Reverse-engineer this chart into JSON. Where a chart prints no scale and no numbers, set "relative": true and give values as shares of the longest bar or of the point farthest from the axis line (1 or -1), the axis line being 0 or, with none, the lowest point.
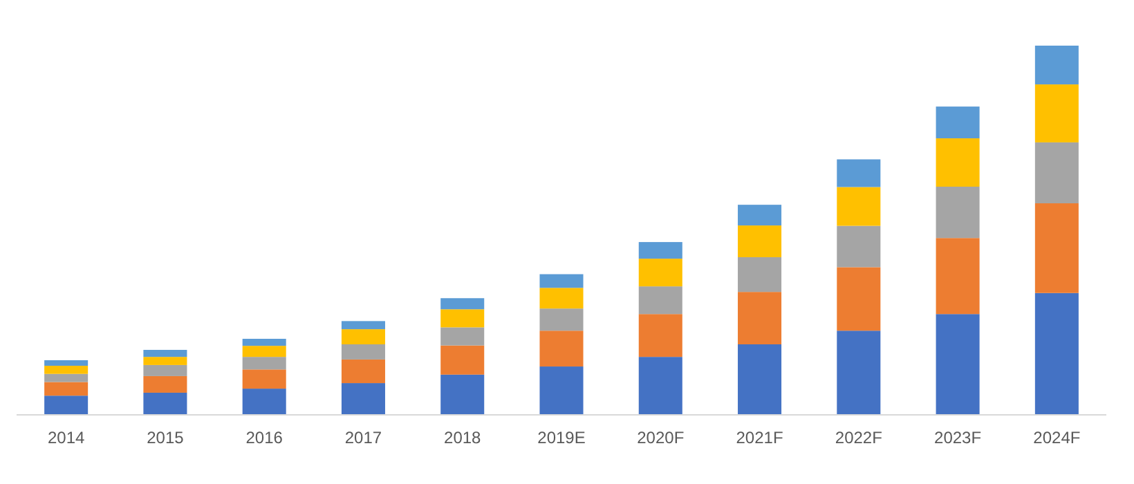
{
  "chart_data": {
    "type": "bar",
    "stacked": true,
    "relative": true,
    "categories": [
      "2014",
      "2015",
      "2016",
      "2017",
      "2018",
      "2019E",
      "2020F",
      "2021F",
      "2022F",
      "2023F",
      "2024F"
    ],
    "series": [
      {
        "color": "#4472c4",
        "values": [
          0.052,
          0.06,
          0.071,
          0.086,
          0.109,
          0.131,
          0.157,
          0.191,
          0.228,
          0.273,
          0.33
        ]
      },
      {
        "color": "#ed7d31",
        "values": [
          0.037,
          0.045,
          0.052,
          0.064,
          0.079,
          0.097,
          0.116,
          0.142,
          0.172,
          0.206,
          0.243
        ]
      },
      {
        "color": "#a5a5a5",
        "values": [
          0.022,
          0.03,
          0.034,
          0.041,
          0.049,
          0.06,
          0.075,
          0.094,
          0.112,
          0.139,
          0.165
        ]
      },
      {
        "color": "#ffc000",
        "values": [
          0.022,
          0.022,
          0.03,
          0.041,
          0.049,
          0.056,
          0.075,
          0.086,
          0.105,
          0.131,
          0.157
        ]
      },
      {
        "color": "#5b9bd5",
        "values": [
          0.015,
          0.019,
          0.019,
          0.022,
          0.03,
          0.037,
          0.045,
          0.056,
          0.075,
          0.086,
          0.105
        ]
      }
    ]
  }
}
